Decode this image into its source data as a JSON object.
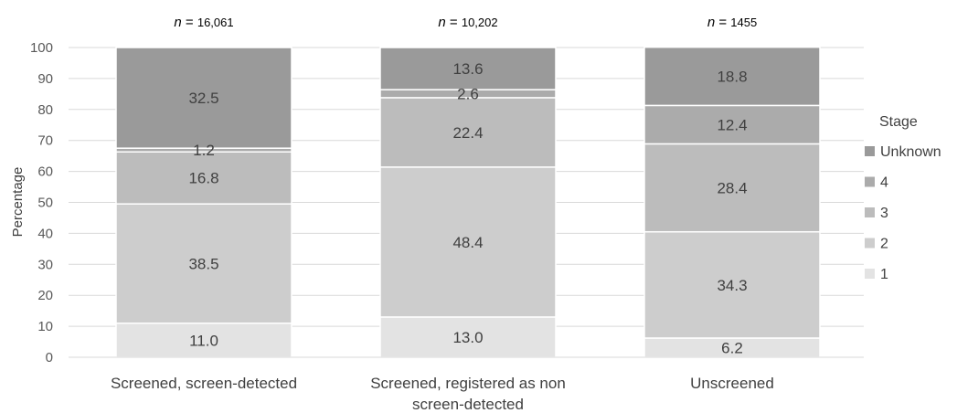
{
  "chart_data": {
    "type": "bar",
    "stacked": true,
    "categories": [
      [
        "Screened, screen-detected"
      ],
      [
        "Screened, registered as non",
        "screen-detected"
      ],
      [
        "Unscreened"
      ]
    ],
    "n_labels": [
      "16,061",
      "10,202",
      "1455"
    ],
    "n_prefix": "n",
    "n_eq": "=",
    "ylabel": "Percentage",
    "ylim": [
      0,
      100
    ],
    "yticks": [
      0,
      10,
      20,
      30,
      40,
      50,
      60,
      70,
      80,
      90,
      100
    ],
    "legend_title": "Stage",
    "legend_position": "right",
    "grid": true,
    "series": [
      {
        "name": "1",
        "color": "#e3e3e3",
        "values": [
          11.0,
          13.0,
          6.2
        ],
        "labels": [
          "11.0",
          "13.0",
          "6.2"
        ]
      },
      {
        "name": "2",
        "color": "#cdcdcd",
        "values": [
          38.5,
          48.4,
          34.3
        ],
        "labels": [
          "38.5",
          "48.4",
          "34.3"
        ]
      },
      {
        "name": "3",
        "color": "#bcbcbc",
        "values": [
          16.8,
          22.4,
          28.4
        ],
        "labels": [
          "16.8",
          "22.4",
          "28.4"
        ]
      },
      {
        "name": "4",
        "color": "#ababab",
        "values": [
          1.2,
          2.6,
          12.4
        ],
        "labels": [
          "1.2",
          "2.6",
          "12.4"
        ]
      },
      {
        "name": "Unknown",
        "color": "#9a9a9a",
        "values": [
          32.5,
          13.6,
          18.8
        ],
        "labels": [
          "32.5",
          "13.6",
          "18.8"
        ]
      }
    ]
  }
}
